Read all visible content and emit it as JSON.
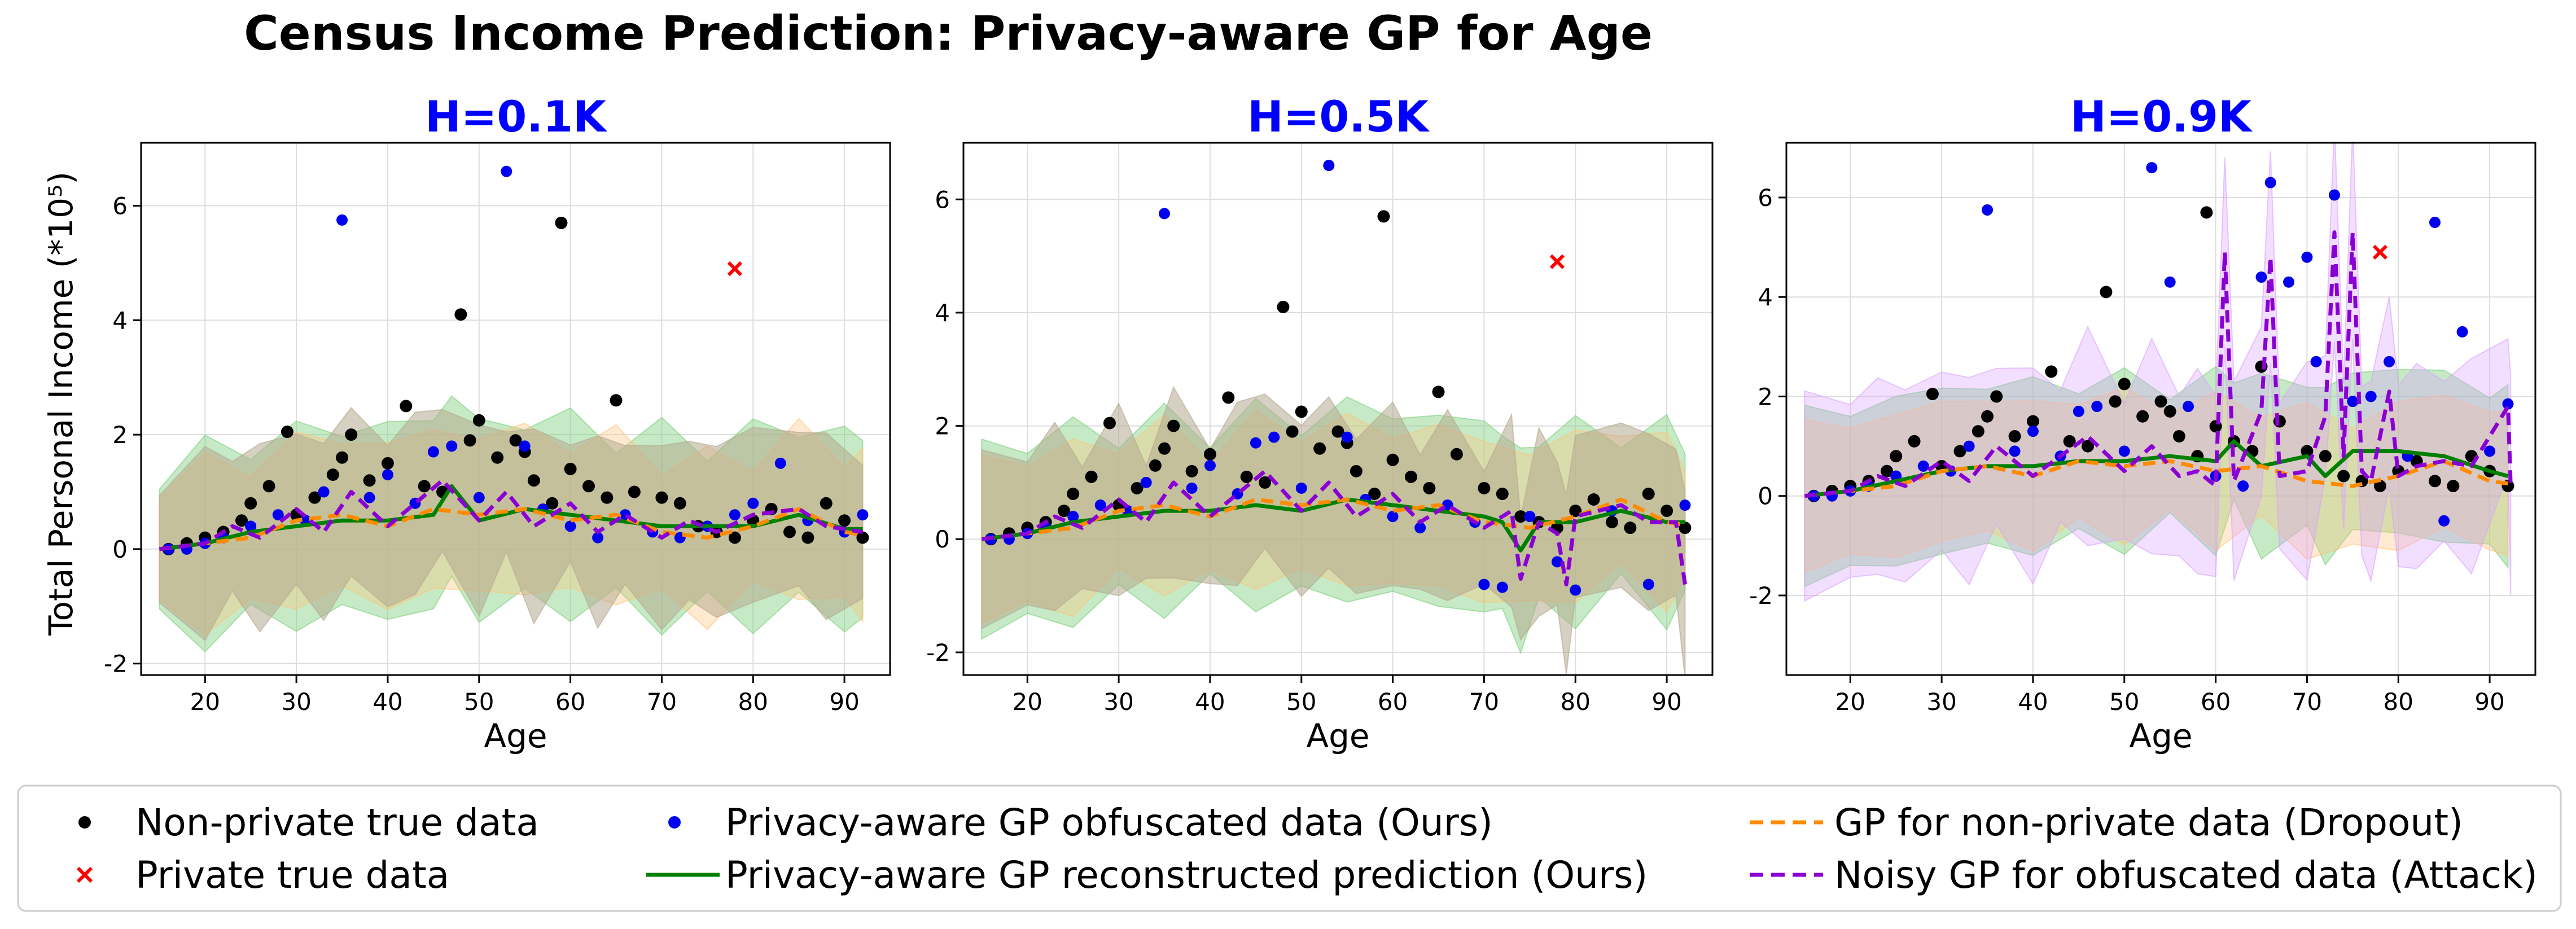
{
  "figure": {
    "title": "Census Income Prediction: Privacy-aware GP for Age",
    "ylabel": "Total Personal Income (*10⁵)"
  },
  "colors": {
    "nonprivate": "#000000",
    "private": "#ff0000",
    "obfuscated": "#0000ee",
    "reconstructed": "#008000",
    "dropout": "#ff8c00",
    "attack": "#8a00d4",
    "panel_title": "#0000ff",
    "grid": "#dddddd",
    "band_green": "#7fd07f",
    "band_orange": "#ffc37a",
    "band_purple": "#d9a3ff",
    "band_gray": "#b5a98f"
  },
  "legend": {
    "items": [
      {
        "key": "nonprivate",
        "label": "Non-private true data",
        "marker": "dot"
      },
      {
        "key": "private",
        "label": "Private true data",
        "marker": "x"
      },
      {
        "key": "obfuscated",
        "label": "Privacy-aware GP obfuscated data (Ours)",
        "marker": "dot"
      },
      {
        "key": "reconstructed",
        "label": "Privacy-aware GP reconstructed prediction (Ours)",
        "marker": "line"
      },
      {
        "key": "dropout",
        "label": "GP for non-private data (Dropout)",
        "marker": "dash"
      },
      {
        "key": "attack",
        "label": "Noisy GP for obfuscated data (Attack)",
        "marker": "dash"
      }
    ]
  },
  "chart_data": [
    {
      "type": "scatter",
      "title": "H=0.1K",
      "xlabel": "Age",
      "ylabel": "Total Personal Income (*10⁵)",
      "xlim": [
        13,
        95
      ],
      "ylim": [
        -2.2,
        7.1
      ],
      "xticks": [
        20,
        30,
        40,
        50,
        60,
        70,
        80,
        90
      ],
      "yticks": [
        -2,
        0,
        2,
        4,
        6
      ],
      "grid": true,
      "series": [
        {
          "name": "Non-private true data",
          "key": "nonprivate",
          "x": [
            16,
            18,
            20,
            22,
            24,
            25,
            27,
            29,
            30,
            32,
            34,
            35,
            36,
            38,
            40,
            42,
            44,
            46,
            48,
            49,
            50,
            52,
            54,
            55,
            56,
            58,
            59,
            60,
            62,
            64,
            65,
            67,
            70,
            72,
            74,
            76,
            78,
            80,
            82,
            84,
            86,
            88,
            90,
            92
          ],
          "y": [
            0.0,
            0.1,
            0.2,
            0.3,
            0.5,
            0.8,
            1.1,
            2.05,
            0.6,
            0.9,
            1.3,
            1.6,
            2.0,
            1.2,
            1.5,
            2.5,
            1.1,
            1.0,
            4.1,
            1.9,
            2.25,
            1.6,
            1.9,
            1.7,
            1.2,
            0.8,
            5.7,
            1.4,
            1.1,
            0.9,
            2.6,
            1.0,
            0.9,
            0.8,
            0.4,
            0.3,
            0.2,
            0.5,
            0.7,
            0.3,
            0.2,
            0.8,
            0.5,
            0.2
          ]
        },
        {
          "name": "Private true data",
          "key": "private",
          "x": [
            78
          ],
          "y": [
            4.9
          ]
        },
        {
          "name": "Privacy-aware GP obfuscated data (Ours)",
          "key": "obfuscated",
          "x": [
            16,
            18,
            20,
            22,
            25,
            28,
            31,
            33,
            35,
            38,
            40,
            43,
            45,
            47,
            50,
            53,
            55,
            57,
            60,
            63,
            66,
            69,
            72,
            75,
            78,
            80,
            83,
            86,
            90,
            92
          ],
          "y": [
            0.0,
            0.0,
            0.1,
            0.2,
            0.4,
            0.6,
            0.5,
            1.0,
            5.75,
            0.9,
            1.3,
            0.8,
            1.7,
            1.8,
            0.9,
            6.6,
            1.8,
            0.7,
            0.4,
            0.2,
            0.6,
            0.3,
            0.2,
            0.4,
            0.6,
            0.8,
            1.5,
            0.5,
            0.3,
            0.6
          ]
        },
        {
          "name": "Privacy-aware GP reconstructed prediction (Ours)",
          "key": "reconstructed",
          "x": [
            15,
            20,
            25,
            30,
            35,
            40,
            45,
            47,
            50,
            55,
            60,
            65,
            70,
            75,
            80,
            85,
            90,
            92
          ],
          "y": [
            0.0,
            0.1,
            0.3,
            0.4,
            0.5,
            0.5,
            0.6,
            1.1,
            0.5,
            0.7,
            0.6,
            0.5,
            0.4,
            0.4,
            0.4,
            0.6,
            0.35,
            0.35
          ]
        },
        {
          "name": "GP for non-private data (Dropout)",
          "key": "dropout",
          "x": [
            15,
            20,
            25,
            30,
            35,
            40,
            45,
            50,
            55,
            60,
            65,
            70,
            75,
            80,
            85,
            90,
            92
          ],
          "y": [
            0.0,
            0.1,
            0.2,
            0.5,
            0.6,
            0.4,
            0.7,
            0.6,
            0.7,
            0.5,
            0.6,
            0.3,
            0.2,
            0.4,
            0.7,
            0.3,
            0.25
          ]
        },
        {
          "name": "Noisy GP for obfuscated data (Attack)",
          "key": "attack",
          "x": [
            15,
            20,
            23,
            26,
            30,
            33,
            36,
            40,
            43,
            46,
            50,
            53,
            56,
            60,
            63,
            66,
            70,
            73,
            76,
            80,
            85,
            88,
            92
          ],
          "y": [
            0.0,
            0.1,
            0.4,
            0.2,
            0.7,
            0.3,
            1.0,
            0.4,
            0.8,
            1.2,
            0.5,
            1.0,
            0.4,
            0.8,
            0.3,
            0.6,
            0.2,
            0.5,
            0.3,
            0.6,
            0.7,
            0.4,
            0.3
          ]
        }
      ]
    },
    {
      "type": "scatter",
      "title": "H=0.5K",
      "xlabel": "Age",
      "ylabel": "",
      "xlim": [
        13,
        95
      ],
      "ylim": [
        -2.4,
        7.0
      ],
      "xticks": [
        20,
        30,
        40,
        50,
        60,
        70,
        80,
        90
      ],
      "yticks": [
        -2,
        0,
        2,
        4,
        6
      ],
      "grid": true,
      "series": [
        {
          "name": "Non-private true data",
          "key": "nonprivate",
          "x": [
            16,
            18,
            20,
            22,
            24,
            25,
            27,
            29,
            30,
            32,
            34,
            35,
            36,
            38,
            40,
            42,
            44,
            46,
            48,
            49,
            50,
            52,
            54,
            55,
            56,
            58,
            59,
            60,
            62,
            64,
            65,
            67,
            70,
            72,
            74,
            76,
            78,
            80,
            82,
            84,
            86,
            88,
            90,
            92
          ],
          "y": [
            0.0,
            0.1,
            0.2,
            0.3,
            0.5,
            0.8,
            1.1,
            2.05,
            0.6,
            0.9,
            1.3,
            1.6,
            2.0,
            1.2,
            1.5,
            2.5,
            1.1,
            1.0,
            4.1,
            1.9,
            2.25,
            1.6,
            1.9,
            1.7,
            1.2,
            0.8,
            5.7,
            1.4,
            1.1,
            0.9,
            2.6,
            1.5,
            0.9,
            0.8,
            0.4,
            0.3,
            0.2,
            0.5,
            0.7,
            0.3,
            0.2,
            0.8,
            0.5,
            0.2
          ]
        },
        {
          "name": "Private true data",
          "key": "private",
          "x": [
            78
          ],
          "y": [
            4.9
          ]
        },
        {
          "name": "Privacy-aware GP obfuscated data (Ours)",
          "key": "obfuscated",
          "x": [
            16,
            18,
            20,
            22,
            25,
            28,
            31,
            33,
            35,
            38,
            40,
            43,
            45,
            47,
            50,
            53,
            55,
            57,
            60,
            63,
            66,
            69,
            70,
            72,
            75,
            78,
            80,
            84,
            88,
            92
          ],
          "y": [
            0.0,
            0.0,
            0.1,
            0.2,
            0.4,
            0.6,
            0.5,
            1.0,
            5.75,
            0.9,
            1.3,
            0.8,
            1.7,
            1.8,
            0.9,
            6.6,
            1.8,
            0.7,
            0.4,
            0.2,
            0.6,
            0.3,
            -0.8,
            -0.85,
            0.4,
            -0.4,
            -0.9,
            0.5,
            -0.8,
            0.6
          ]
        },
        {
          "name": "Privacy-aware GP reconstructed prediction (Ours)",
          "key": "reconstructed",
          "x": [
            15,
            20,
            25,
            30,
            35,
            40,
            45,
            50,
            55,
            60,
            65,
            70,
            72,
            74,
            76,
            80,
            85,
            90,
            92
          ],
          "y": [
            0.0,
            0.1,
            0.3,
            0.4,
            0.5,
            0.5,
            0.6,
            0.5,
            0.7,
            0.6,
            0.5,
            0.4,
            0.3,
            -0.2,
            0.3,
            0.3,
            0.5,
            0.3,
            0.3
          ]
        },
        {
          "name": "GP for non-private data (Dropout)",
          "key": "dropout",
          "x": [
            15,
            20,
            25,
            30,
            35,
            40,
            45,
            50,
            55,
            60,
            65,
            70,
            75,
            80,
            85,
            90,
            92
          ],
          "y": [
            0.0,
            0.1,
            0.2,
            0.5,
            0.6,
            0.4,
            0.7,
            0.6,
            0.7,
            0.5,
            0.6,
            0.3,
            0.2,
            0.4,
            0.7,
            0.3,
            0.25
          ]
        },
        {
          "name": "Noisy GP for obfuscated data (Attack)",
          "key": "attack",
          "x": [
            15,
            20,
            23,
            26,
            30,
            33,
            36,
            40,
            43,
            46,
            50,
            53,
            56,
            60,
            63,
            66,
            70,
            73,
            74,
            76,
            78,
            79,
            80,
            85,
            88,
            91,
            92
          ],
          "y": [
            0.0,
            0.1,
            0.4,
            0.2,
            0.7,
            0.3,
            1.0,
            0.4,
            0.8,
            1.2,
            0.5,
            1.0,
            0.4,
            0.8,
            0.3,
            0.6,
            0.2,
            0.5,
            -0.7,
            0.3,
            0.1,
            -0.8,
            0.4,
            0.6,
            0.3,
            0.3,
            -0.8
          ]
        }
      ]
    },
    {
      "type": "scatter",
      "title": "H=0.9K",
      "xlabel": "Age",
      "ylabel": "",
      "xlim": [
        13,
        95
      ],
      "ylim": [
        -3.6,
        7.1
      ],
      "xticks": [
        20,
        30,
        40,
        50,
        60,
        70,
        80,
        90
      ],
      "yticks": [
        -2,
        0,
        2,
        4,
        6
      ],
      "grid": true,
      "series": [
        {
          "name": "Non-private true data",
          "key": "nonprivate",
          "x": [
            16,
            18,
            20,
            22,
            24,
            25,
            27,
            29,
            30,
            32,
            34,
            35,
            36,
            38,
            40,
            42,
            44,
            46,
            48,
            49,
            50,
            52,
            54,
            55,
            56,
            58,
            59,
            60,
            62,
            64,
            65,
            67,
            70,
            72,
            74,
            76,
            78,
            80,
            82,
            84,
            86,
            88,
            90,
            92
          ],
          "y": [
            0.0,
            0.1,
            0.2,
            0.3,
            0.5,
            0.8,
            1.1,
            2.05,
            0.6,
            0.9,
            1.3,
            1.6,
            2.0,
            1.2,
            1.5,
            2.5,
            1.1,
            1.0,
            4.1,
            1.9,
            2.25,
            1.6,
            1.9,
            1.7,
            1.2,
            0.8,
            5.7,
            1.4,
            1.1,
            0.9,
            2.6,
            1.5,
            0.9,
            0.8,
            0.4,
            0.3,
            0.2,
            0.5,
            0.7,
            0.3,
            0.2,
            0.8,
            0.5,
            0.2
          ]
        },
        {
          "name": "Private true data",
          "key": "private",
          "x": [
            78
          ],
          "y": [
            4.9
          ]
        },
        {
          "name": "Privacy-aware GP obfuscated data (Ours)",
          "key": "obfuscated",
          "x": [
            16,
            18,
            20,
            22,
            25,
            28,
            31,
            33,
            35,
            38,
            40,
            43,
            45,
            47,
            50,
            53,
            55,
            57,
            60,
            63,
            65,
            66,
            68,
            70,
            71,
            73,
            75,
            77,
            79,
            81,
            84,
            85,
            87,
            90,
            92
          ],
          "y": [
            0.0,
            0.0,
            0.1,
            0.2,
            0.4,
            0.6,
            0.5,
            1.0,
            5.75,
            0.9,
            1.3,
            0.8,
            1.7,
            1.8,
            0.9,
            6.6,
            4.3,
            1.8,
            0.4,
            0.2,
            4.4,
            6.3,
            4.3,
            4.8,
            2.7,
            6.05,
            1.9,
            2.0,
            2.7,
            0.8,
            5.5,
            -0.5,
            3.3,
            0.9,
            1.85
          ]
        },
        {
          "name": "Privacy-aware GP reconstructed prediction (Ours)",
          "key": "reconstructed",
          "x": [
            15,
            20,
            25,
            30,
            35,
            40,
            45,
            50,
            55,
            60,
            62,
            65,
            70,
            72,
            75,
            80,
            85,
            90,
            92
          ],
          "y": [
            0.0,
            0.1,
            0.3,
            0.5,
            0.6,
            0.6,
            0.7,
            0.7,
            0.8,
            0.7,
            1.1,
            0.6,
            0.8,
            0.4,
            0.9,
            0.9,
            0.8,
            0.5,
            0.4
          ]
        },
        {
          "name": "GP for non-private data (Dropout)",
          "key": "dropout",
          "x": [
            15,
            20,
            25,
            30,
            35,
            40,
            45,
            50,
            55,
            60,
            65,
            70,
            75,
            80,
            85,
            90,
            92
          ],
          "y": [
            0.0,
            0.1,
            0.2,
            0.5,
            0.6,
            0.4,
            0.7,
            0.6,
            0.7,
            0.5,
            0.6,
            0.3,
            0.2,
            0.4,
            0.7,
            0.3,
            0.25
          ]
        },
        {
          "name": "Noisy GP for obfuscated data (Attack)",
          "key": "attack",
          "x": [
            15,
            20,
            23,
            26,
            30,
            33,
            36,
            40,
            43,
            46,
            50,
            53,
            56,
            58,
            60,
            61,
            62,
            65,
            66,
            67,
            70,
            72,
            73,
            74,
            75,
            76,
            77,
            79,
            80,
            82,
            85,
            88,
            92,
            92.3
          ],
          "y": [
            0.0,
            0.1,
            0.4,
            0.2,
            0.7,
            0.3,
            1.0,
            0.4,
            0.8,
            1.2,
            0.5,
            1.0,
            0.4,
            0.5,
            0.2,
            4.9,
            0.3,
            1.7,
            4.8,
            0.4,
            0.5,
            1.6,
            5.3,
            0.8,
            5.3,
            0.5,
            0.3,
            2.1,
            0.4,
            0.6,
            0.7,
            0.6,
            1.8,
            0.2
          ]
        }
      ]
    }
  ]
}
